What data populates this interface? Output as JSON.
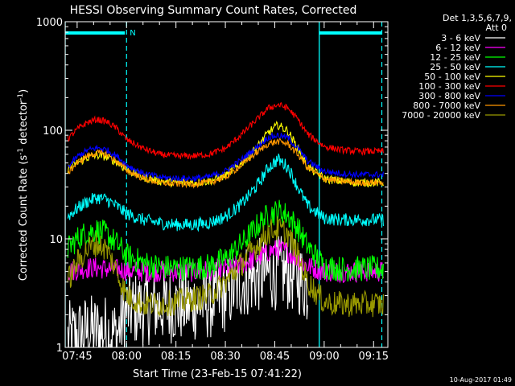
{
  "chart_data": {
    "type": "line",
    "title": "HESSI Observing Summary Count Rates, Corrected",
    "xlabel": "Start Time (23-Feb-15 07:41:22)",
    "ylabel_prefix": "Corrected Count Rate (s",
    "ylabel_sup1": "-1",
    "ylabel_mid": " detector",
    "ylabel_sup2": "-1",
    "ylabel_suffix": ")",
    "timestamp": "10-Aug-2017 01:49",
    "legend_title": [
      "Det 1,3,5,6,7,9,",
      "Att 0"
    ],
    "y_scale": "log",
    "ylim": [
      1,
      1000
    ],
    "xlim": [
      "07:41:22",
      "09:19:20"
    ],
    "y_ticks": [
      {
        "label": "1",
        "value": 1
      },
      {
        "label": "10",
        "value": 10
      },
      {
        "label": "100",
        "value": 100
      },
      {
        "label": "1000",
        "value": 1000
      }
    ],
    "x_ticks": [
      {
        "label": "07:45",
        "value": "07:45"
      },
      {
        "label": "08:00",
        "value": "08:00"
      },
      {
        "label": "08:15",
        "value": "08:15"
      },
      {
        "label": "08:30",
        "value": "08:30"
      },
      {
        "label": "08:45",
        "value": "08:45"
      },
      {
        "label": "09:00",
        "value": "09:00"
      },
      {
        "label": "09:15",
        "value": "09:15"
      }
    ],
    "night_marker_label": "N",
    "night_bars": [
      [
        "07:41:22",
        "07:59:30"
      ],
      [
        "08:58:30",
        "09:17:30"
      ]
    ],
    "saa_lines": [
      "07:41:22",
      "08:58:30"
    ],
    "night_lines": [
      "08:00:00",
      "09:17:30"
    ],
    "x": [
      "07:42",
      "07:45",
      "07:48",
      "07:51",
      "07:54",
      "07:57",
      "08:00",
      "08:05",
      "08:10",
      "08:15",
      "08:20",
      "08:25",
      "08:30",
      "08:35",
      "08:40",
      "08:43",
      "08:46",
      "08:49",
      "08:52",
      "08:55",
      "09:00",
      "09:05",
      "09:10",
      "09:15",
      "09:18"
    ],
    "series": [
      {
        "name": "3 - 6 keV",
        "color": "#ffffff",
        "noise": 0.35,
        "values": [
          1.2,
          1.3,
          1.4,
          1.4,
          1.4,
          1.3,
          2.2,
          2.3,
          2.4,
          2.4,
          2.5,
          2.6,
          3.0,
          4.0,
          4.6,
          4.8,
          4.9,
          4.8,
          4.5,
          3.5,
          null,
          null,
          null,
          null,
          null
        ]
      },
      {
        "name": "6 - 12 keV",
        "color": "#ff00ff",
        "noise": 0.1,
        "values": [
          5.0,
          5.2,
          5.4,
          5.4,
          5.3,
          5.2,
          5.1,
          5.0,
          5.0,
          5.0,
          5.0,
          5.1,
          5.3,
          5.8,
          6.8,
          7.6,
          8.0,
          7.6,
          6.5,
          5.6,
          5.0,
          5.0,
          5.0,
          5.0,
          5.0
        ]
      },
      {
        "name": "12 - 25 keV",
        "color": "#00ff00",
        "noise": 0.12,
        "values": [
          8.0,
          10.0,
          11.5,
          12.0,
          11.0,
          9.0,
          7.0,
          6.0,
          5.5,
          5.4,
          5.4,
          5.6,
          6.5,
          9.0,
          13.5,
          16.5,
          18.0,
          16.5,
          12.5,
          8.5,
          5.6,
          5.3,
          5.3,
          5.3,
          5.3
        ]
      },
      {
        "name": "25 - 50 keV",
        "color": "#00ffff",
        "noise": 0.06,
        "values": [
          16,
          19,
          22,
          24,
          23,
          20,
          17,
          15,
          14,
          13.5,
          13.5,
          14,
          16,
          21,
          32,
          45,
          54,
          46,
          30,
          20,
          15.5,
          15,
          15,
          15,
          15
        ]
      },
      {
        "name": "50 - 100 keV",
        "color": "#ffff00",
        "noise": 0.04,
        "values": [
          43,
          50,
          56,
          59,
          57,
          51,
          43,
          37,
          34,
          33,
          33,
          34,
          38,
          50,
          72,
          95,
          112,
          98,
          68,
          46,
          36,
          34,
          33,
          33,
          33
        ]
      },
      {
        "name": "100 - 300 keV",
        "color": "#ff0000",
        "noise": 0.03,
        "values": [
          82,
          102,
          118,
          126,
          120,
          104,
          82,
          68,
          60,
          58,
          58,
          60,
          68,
          92,
          130,
          160,
          172,
          160,
          126,
          92,
          71,
          66,
          64,
          64,
          64
        ]
      },
      {
        "name": "300 - 800 keV",
        "color": "#0000ff",
        "noise": 0.03,
        "values": [
          45,
          57,
          65,
          69,
          66,
          58,
          48,
          40,
          37,
          36,
          36,
          37,
          42,
          54,
          72,
          86,
          90,
          85,
          68,
          52,
          42,
          40,
          39,
          39,
          39
        ]
      },
      {
        "name": "800 - 7000 keV",
        "color": "#ff9600",
        "noise": 0.03,
        "values": [
          40,
          50,
          58,
          62,
          60,
          52,
          43,
          36,
          33,
          32,
          32,
          33,
          37,
          48,
          64,
          75,
          79,
          75,
          60,
          45,
          36,
          34,
          33,
          33,
          33
        ]
      },
      {
        "name": "7000 - 20000 keV",
        "color": "#999900",
        "noise": 0.12,
        "values": [
          4.0,
          6.0,
          8.0,
          9.0,
          8.0,
          5.0,
          3.0,
          2.5,
          2.5,
          2.6,
          2.8,
          3.0,
          4.0,
          6.0,
          9.0,
          11.5,
          12.5,
          11.0,
          7.0,
          4.0,
          2.6,
          2.5,
          2.5,
          2.5,
          2.5
        ]
      }
    ]
  }
}
